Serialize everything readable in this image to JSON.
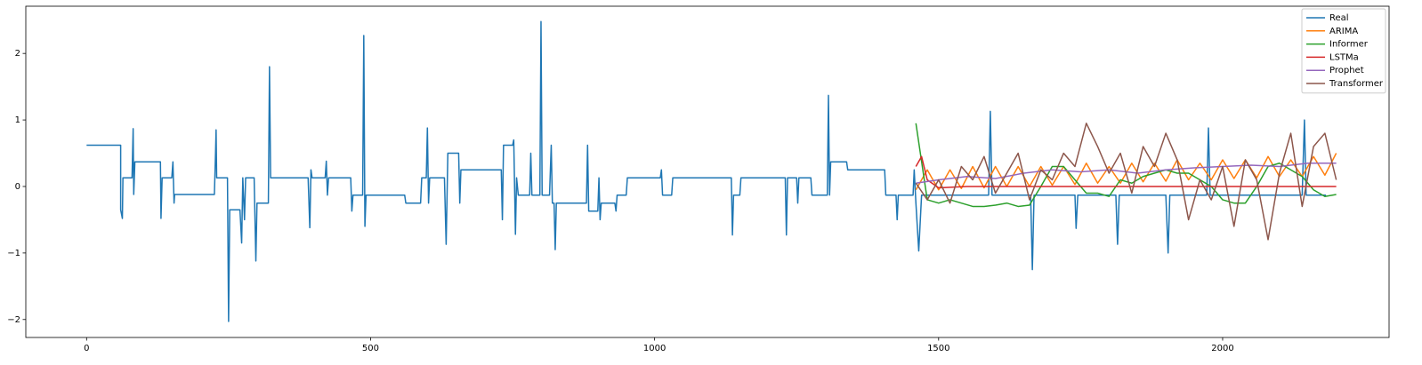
{
  "chart_data": {
    "type": "line",
    "xlim": [
      -107,
      2293
    ],
    "ylim": [
      -2.27,
      2.71
    ],
    "xticks": [
      0,
      500,
      1000,
      1500,
      2000
    ],
    "yticks": [
      {
        "value": -2,
        "label": "−2"
      },
      {
        "value": -1,
        "label": "−1"
      },
      0,
      1,
      2
    ],
    "legend": "upper right",
    "series": [
      {
        "name": "Real",
        "color": "#1f77b4",
        "x": [
          0,
          60,
          60,
          63,
          64,
          80,
          82,
          83,
          85,
          130,
          131,
          133,
          150,
          152,
          154,
          155,
          225,
          227,
          228,
          229,
          248,
          250,
          252,
          270,
          273,
          275,
          278,
          280,
          295,
          298,
          300,
          320,
          322,
          324,
          390,
          393,
          395,
          397,
          420,
          422,
          424,
          426,
          465,
          467,
          469,
          486,
          488,
          490,
          492,
          560,
          562,
          588,
          590,
          598,
          600,
          602,
          604,
          630,
          633,
          636,
          655,
          657,
          659,
          730,
          732,
          734,
          750,
          752,
          755,
          757,
          760,
          780,
          782,
          784,
          798,
          800,
          802,
          815,
          818,
          820,
          823,
          825,
          827,
          880,
          882,
          884,
          900,
          902,
          904,
          906,
          930,
          932,
          934,
          950,
          952,
          1010,
          1012,
          1014,
          1030,
          1032,
          1135,
          1137,
          1139,
          1150,
          1152,
          1230,
          1232,
          1234,
          1250,
          1252,
          1254,
          1275,
          1277,
          1304,
          1306,
          1308,
          1310,
          1338,
          1340,
          1405,
          1407,
          1425,
          1427,
          1429,
          1455,
          1457,
          1460,
          1465,
          1470,
          1588,
          1591,
          1594,
          1662,
          1665,
          1668,
          1740,
          1742,
          1745,
          1812,
          1815,
          1818,
          1900,
          1904,
          1907,
          1972,
          1975,
          1978,
          2140,
          2144,
          2147,
          2182
        ],
        "values": [
          0.62,
          0.62,
          -0.35,
          -0.48,
          0.13,
          0.13,
          0.87,
          -0.12,
          0.37,
          0.37,
          -0.48,
          0.13,
          0.13,
          0.37,
          -0.25,
          -0.12,
          -0.12,
          0.5,
          0.85,
          0.13,
          0.13,
          -2.03,
          -0.35,
          -0.35,
          -0.85,
          0.13,
          -0.5,
          0.13,
          0.13,
          -1.12,
          -0.25,
          -0.25,
          1.8,
          0.13,
          0.13,
          -0.62,
          0.25,
          0.13,
          0.13,
          0.38,
          -0.13,
          0.13,
          0.13,
          -0.37,
          -0.13,
          -0.13,
          2.27,
          -0.6,
          -0.13,
          -0.13,
          -0.25,
          -0.25,
          0.13,
          0.13,
          0.88,
          -0.25,
          0.13,
          0.13,
          -0.87,
          0.5,
          0.5,
          -0.25,
          0.25,
          0.25,
          -0.5,
          0.62,
          0.62,
          0.7,
          -0.72,
          0.13,
          -0.13,
          -0.13,
          0.5,
          -0.13,
          -0.13,
          2.48,
          -0.13,
          -0.13,
          0.62,
          -0.25,
          -0.25,
          -0.95,
          -0.25,
          -0.25,
          0.62,
          -0.37,
          -0.37,
          0.13,
          -0.5,
          -0.25,
          -0.25,
          -0.37,
          -0.13,
          -0.13,
          0.13,
          0.13,
          0.25,
          -0.13,
          -0.13,
          0.13,
          0.13,
          -0.73,
          -0.13,
          -0.13,
          0.13,
          0.13,
          -0.73,
          0.13,
          0.13,
          -0.25,
          0.13,
          0.13,
          -0.13,
          -0.13,
          1.37,
          -0.13,
          0.37,
          0.37,
          0.25,
          0.25,
          -0.13,
          -0.13,
          -0.5,
          -0.13,
          -0.13,
          0.25,
          -0.25,
          -0.97,
          -0.13,
          -0.13,
          1.13,
          -0.13,
          -0.13,
          -1.25,
          -0.13,
          -0.13,
          -0.63,
          -0.13,
          -0.13,
          -0.87,
          -0.13,
          -0.13,
          -1.0,
          -0.13,
          -0.13,
          0.88,
          -0.13,
          -0.13,
          1.0,
          -0.13,
          -0.13
        ]
      },
      {
        "name": "ARIMA",
        "color": "#ff7f0e",
        "x": [
          1460,
          1480,
          1500,
          1520,
          1540,
          1560,
          1580,
          1600,
          1620,
          1640,
          1660,
          1680,
          1700,
          1720,
          1740,
          1760,
          1780,
          1800,
          1820,
          1840,
          1860,
          1880,
          1900,
          1920,
          1940,
          1960,
          1980,
          2000,
          2020,
          2040,
          2060,
          2080,
          2100,
          2120,
          2140,
          2160,
          2180,
          2200
        ],
        "values": [
          -0.05,
          0.25,
          -0.05,
          0.25,
          -0.03,
          0.3,
          -0.02,
          0.3,
          0.0,
          0.3,
          0.0,
          0.3,
          0.02,
          0.3,
          0.03,
          0.35,
          0.05,
          0.3,
          0.05,
          0.35,
          0.07,
          0.35,
          0.08,
          0.4,
          0.1,
          0.35,
          0.1,
          0.4,
          0.12,
          0.4,
          0.13,
          0.45,
          0.15,
          0.4,
          0.15,
          0.45,
          0.17,
          0.5
        ]
      },
      {
        "name": "Informer",
        "color": "#2ca02c",
        "x": [
          1460,
          1480,
          1500,
          1520,
          1540,
          1560,
          1580,
          1600,
          1620,
          1640,
          1660,
          1680,
          1700,
          1720,
          1740,
          1760,
          1780,
          1800,
          1820,
          1840,
          1860,
          1880,
          1900,
          1920,
          1940,
          1960,
          1980,
          2000,
          2020,
          2040,
          2060,
          2080,
          2100,
          2120,
          2140,
          2160,
          2180,
          2200
        ],
        "values": [
          0.95,
          -0.2,
          -0.25,
          -0.2,
          -0.25,
          -0.3,
          -0.3,
          -0.28,
          -0.25,
          -0.3,
          -0.28,
          0.0,
          0.3,
          0.3,
          0.1,
          -0.1,
          -0.1,
          -0.15,
          0.1,
          0.05,
          0.15,
          0.2,
          0.25,
          0.2,
          0.2,
          0.1,
          0.0,
          -0.2,
          -0.25,
          -0.25,
          0.0,
          0.3,
          0.35,
          0.25,
          0.15,
          -0.05,
          -0.15,
          -0.12
        ]
      },
      {
        "name": "LSTMa",
        "color": "#d62728",
        "x": [
          1460,
          1470,
          1480,
          1500,
          1550,
          2200
        ],
        "values": [
          0.3,
          0.45,
          0.1,
          -0.02,
          0,
          0
        ]
      },
      {
        "name": "Prophet",
        "color": "#9467bd",
        "x": [
          1460,
          1500,
          1550,
          1600,
          1650,
          1700,
          1750,
          1800,
          1850,
          1900,
          1950,
          2000,
          2050,
          2100,
          2150,
          2200
        ],
        "values": [
          0.05,
          0.1,
          0.15,
          0.12,
          0.2,
          0.25,
          0.22,
          0.25,
          0.2,
          0.25,
          0.28,
          0.3,
          0.32,
          0.3,
          0.35,
          0.35
        ]
      },
      {
        "name": "Transformer",
        "color": "#8c564b",
        "x": [
          1460,
          1480,
          1500,
          1520,
          1540,
          1560,
          1580,
          1600,
          1620,
          1640,
          1660,
          1680,
          1700,
          1720,
          1740,
          1760,
          1780,
          1800,
          1820,
          1840,
          1860,
          1880,
          1900,
          1920,
          1940,
          1960,
          1980,
          2000,
          2020,
          2040,
          2060,
          2080,
          2100,
          2120,
          2140,
          2160,
          2180,
          2200
        ],
        "values": [
          0.05,
          -0.2,
          0.1,
          -0.25,
          0.3,
          0.1,
          0.45,
          -0.1,
          0.2,
          0.5,
          -0.2,
          0.25,
          0.1,
          0.5,
          0.3,
          0.95,
          0.6,
          0.2,
          0.5,
          -0.1,
          0.6,
          0.3,
          0.8,
          0.4,
          -0.5,
          0.1,
          -0.2,
          0.3,
          -0.6,
          0.4,
          0.1,
          -0.8,
          0.2,
          0.8,
          -0.3,
          0.6,
          0.8,
          0.1
        ]
      }
    ]
  }
}
